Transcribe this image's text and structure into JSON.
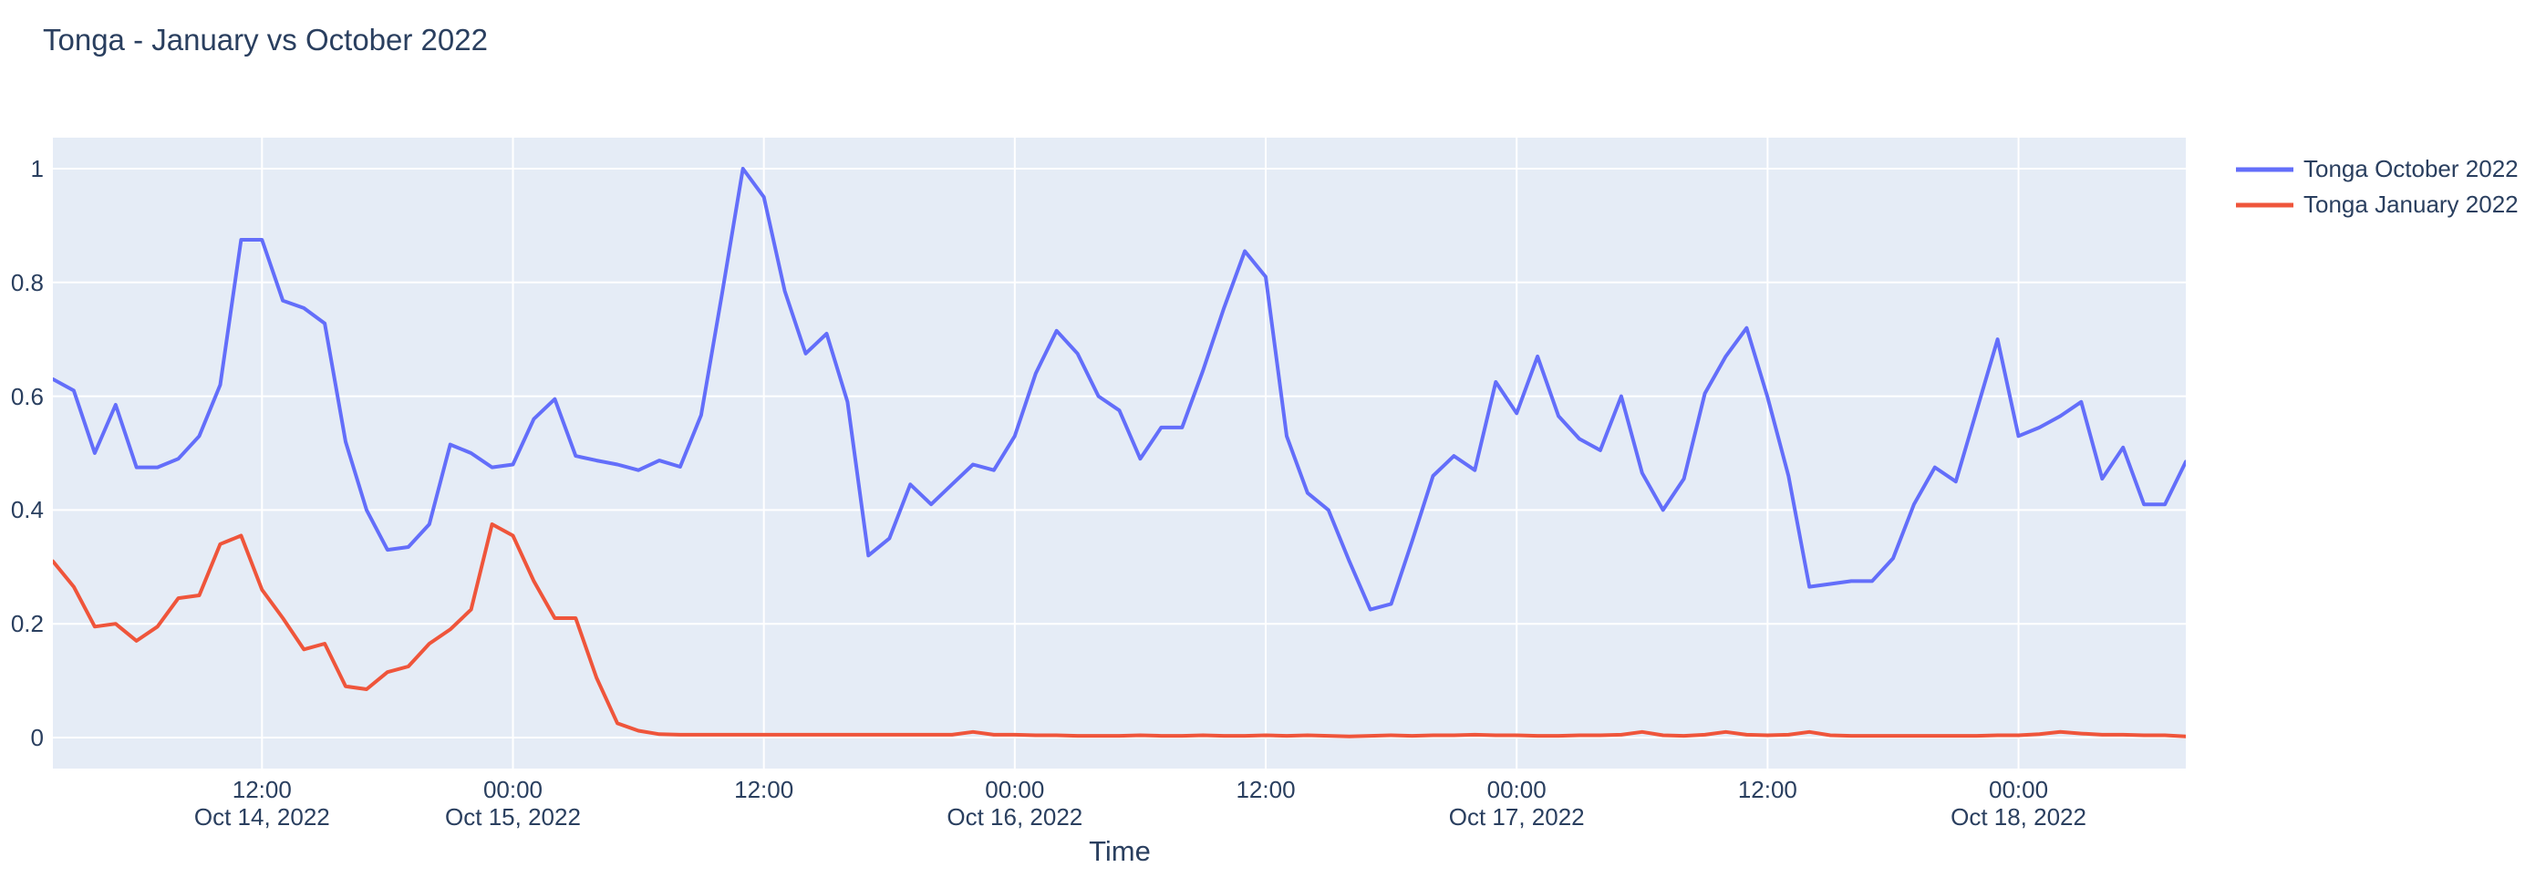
{
  "title": "Tonga - January vs October 2022",
  "colors": {
    "text": "#2a3f5f",
    "plot_background": "#e5ecf6",
    "grid": "#ffffff",
    "october_line": "#636efa",
    "january_line": "#ef553b"
  },
  "x_axis": {
    "title": "Time",
    "ticks": [
      {
        "t": 10,
        "time": "12:00",
        "date": "Oct 14, 2022"
      },
      {
        "t": 22,
        "time": "00:00",
        "date": "Oct 15, 2022"
      },
      {
        "t": 34,
        "time": "12:00",
        "date": ""
      },
      {
        "t": 46,
        "time": "00:00",
        "date": "Oct 16, 2022"
      },
      {
        "t": 58,
        "time": "12:00",
        "date": ""
      },
      {
        "t": 70,
        "time": "00:00",
        "date": "Oct 17, 2022"
      },
      {
        "t": 82,
        "time": "12:00",
        "date": ""
      },
      {
        "t": 94,
        "time": "00:00",
        "date": "Oct 18, 2022"
      }
    ]
  },
  "y_axis": {
    "ticks": [
      {
        "v": 0.0,
        "label": "0"
      },
      {
        "v": 0.2,
        "label": "0.2"
      },
      {
        "v": 0.4,
        "label": "0.4"
      },
      {
        "v": 0.6,
        "label": "0.6"
      },
      {
        "v": 0.8,
        "label": "0.8"
      },
      {
        "v": 1.0,
        "label": "1"
      }
    ]
  },
  "chart_data": {
    "type": "line",
    "title": "Tonga - January vs October 2022",
    "xlabel": "Time",
    "ylabel": "",
    "ylim": [
      -0.055,
      1.055
    ],
    "grid": "on",
    "legend_position": "right-top",
    "x_frequency": "hourly",
    "x_times": [
      "2022-10-14 02:00",
      "2022-10-14 03:00",
      "2022-10-14 04:00",
      "2022-10-14 05:00",
      "2022-10-14 06:00",
      "2022-10-14 07:00",
      "2022-10-14 08:00",
      "2022-10-14 09:00",
      "2022-10-14 10:00",
      "2022-10-14 11:00",
      "2022-10-14 12:00",
      "2022-10-14 13:00",
      "2022-10-14 14:00",
      "2022-10-14 15:00",
      "2022-10-14 16:00",
      "2022-10-14 17:00",
      "2022-10-14 18:00",
      "2022-10-14 19:00",
      "2022-10-14 20:00",
      "2022-10-14 21:00",
      "2022-10-14 22:00",
      "2022-10-14 23:00",
      "2022-10-15 00:00",
      "2022-10-15 01:00",
      "2022-10-15 02:00",
      "2022-10-15 03:00",
      "2022-10-15 04:00",
      "2022-10-15 05:00",
      "2022-10-15 06:00",
      "2022-10-15 07:00",
      "2022-10-15 08:00",
      "2022-10-15 09:00",
      "2022-10-15 10:00",
      "2022-10-15 11:00",
      "2022-10-15 12:00",
      "2022-10-15 13:00",
      "2022-10-15 14:00",
      "2022-10-15 15:00",
      "2022-10-15 16:00",
      "2022-10-15 17:00",
      "2022-10-15 18:00",
      "2022-10-15 19:00",
      "2022-10-15 20:00",
      "2022-10-15 21:00",
      "2022-10-15 22:00",
      "2022-10-15 23:00",
      "2022-10-16 00:00",
      "2022-10-16 01:00",
      "2022-10-16 02:00",
      "2022-10-16 03:00",
      "2022-10-16 04:00",
      "2022-10-16 05:00",
      "2022-10-16 06:00",
      "2022-10-16 07:00",
      "2022-10-16 08:00",
      "2022-10-16 09:00",
      "2022-10-16 10:00",
      "2022-10-16 11:00",
      "2022-10-16 12:00",
      "2022-10-16 13:00",
      "2022-10-16 14:00",
      "2022-10-16 15:00",
      "2022-10-16 16:00",
      "2022-10-16 17:00",
      "2022-10-16 18:00",
      "2022-10-16 19:00",
      "2022-10-16 20:00",
      "2022-10-16 21:00",
      "2022-10-16 22:00",
      "2022-10-16 23:00",
      "2022-10-17 00:00",
      "2022-10-17 01:00",
      "2022-10-17 02:00",
      "2022-10-17 03:00",
      "2022-10-17 04:00",
      "2022-10-17 05:00",
      "2022-10-17 06:00",
      "2022-10-17 07:00",
      "2022-10-17 08:00",
      "2022-10-17 09:00",
      "2022-10-17 10:00",
      "2022-10-17 11:00",
      "2022-10-17 12:00",
      "2022-10-17 13:00",
      "2022-10-17 14:00",
      "2022-10-17 15:00",
      "2022-10-17 16:00",
      "2022-10-17 17:00",
      "2022-10-17 18:00",
      "2022-10-17 19:00",
      "2022-10-17 20:00",
      "2022-10-17 21:00",
      "2022-10-17 22:00",
      "2022-10-17 23:00",
      "2022-10-18 00:00",
      "2022-10-18 01:00",
      "2022-10-18 02:00",
      "2022-10-18 03:00",
      "2022-10-18 04:00",
      "2022-10-18 05:00",
      "2022-10-18 06:00",
      "2022-10-18 07:00",
      "2022-10-18 08:00"
    ],
    "series": [
      {
        "name": "Tonga October 2022",
        "color": "#636efa",
        "values": [
          0.63,
          0.61,
          0.5,
          0.585,
          0.475,
          0.475,
          0.49,
          0.53,
          0.62,
          0.875,
          0.875,
          0.768,
          0.755,
          0.728,
          0.52,
          0.4,
          0.33,
          0.335,
          0.375,
          0.515,
          0.5,
          0.475,
          0.48,
          0.56,
          0.595,
          0.495,
          0.487,
          0.48,
          0.47,
          0.487,
          0.476,
          0.567,
          0.78,
          1.0,
          0.95,
          0.785,
          0.675,
          0.71,
          0.59,
          0.32,
          0.35,
          0.445,
          0.41,
          0.445,
          0.48,
          0.47,
          0.53,
          0.64,
          0.715,
          0.675,
          0.6,
          0.575,
          0.49,
          0.545,
          0.545,
          0.645,
          0.755,
          0.855,
          0.81,
          0.53,
          0.43,
          0.4,
          0.31,
          0.225,
          0.235,
          0.345,
          0.46,
          0.495,
          0.47,
          0.625,
          0.57,
          0.67,
          0.565,
          0.525,
          0.505,
          0.6,
          0.465,
          0.4,
          0.455,
          0.605,
          0.67,
          0.72,
          0.598,
          0.46,
          0.265,
          0.27,
          0.275,
          0.275,
          0.315,
          0.41,
          0.475,
          0.45,
          0.575,
          0.7,
          0.53,
          0.545,
          0.565,
          0.59,
          0.455,
          0.51,
          0.41,
          0.41,
          0.485
        ]
      },
      {
        "name": "Tonga January 2022",
        "color": "#ef553b",
        "values": [
          0.31,
          0.265,
          0.195,
          0.2,
          0.17,
          0.195,
          0.245,
          0.25,
          0.34,
          0.355,
          0.26,
          0.21,
          0.155,
          0.165,
          0.09,
          0.085,
          0.115,
          0.125,
          0.165,
          0.19,
          0.225,
          0.375,
          0.355,
          0.275,
          0.21,
          0.21,
          0.105,
          0.025,
          0.012,
          0.006,
          0.005,
          0.005,
          0.005,
          0.005,
          0.005,
          0.005,
          0.005,
          0.005,
          0.005,
          0.005,
          0.005,
          0.005,
          0.005,
          0.005,
          0.01,
          0.005,
          0.005,
          0.004,
          0.004,
          0.003,
          0.003,
          0.003,
          0.004,
          0.003,
          0.003,
          0.004,
          0.003,
          0.003,
          0.004,
          0.003,
          0.004,
          0.003,
          0.002,
          0.003,
          0.004,
          0.003,
          0.004,
          0.004,
          0.005,
          0.004,
          0.004,
          0.003,
          0.003,
          0.004,
          0.004,
          0.005,
          0.01,
          0.004,
          0.003,
          0.005,
          0.01,
          0.005,
          0.004,
          0.005,
          0.01,
          0.004,
          0.003,
          0.003,
          0.003,
          0.003,
          0.003,
          0.003,
          0.003,
          0.004,
          0.004,
          0.006,
          0.01,
          0.007,
          0.005,
          0.005,
          0.004,
          0.004,
          0.002
        ]
      }
    ]
  }
}
